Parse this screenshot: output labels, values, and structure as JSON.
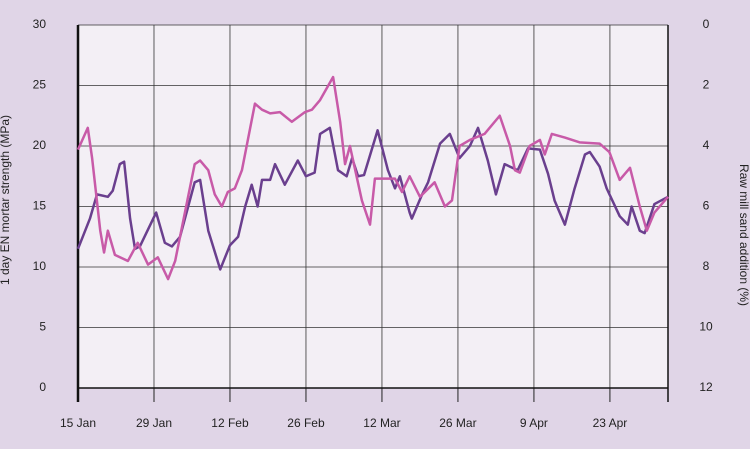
{
  "chart_data": {
    "type": "line",
    "y_label": "1 day EN mortar strength (MPa)",
    "y2_label": "Raw mill sand addition (%)",
    "xlim": [
      0,
      108.7
    ],
    "xticks": [
      {
        "value": 0,
        "label": "15 Jan"
      },
      {
        "value": 14,
        "label": "29 Jan"
      },
      {
        "value": 28,
        "label": "12 Feb"
      },
      {
        "value": 42,
        "label": "26 Feb"
      },
      {
        "value": 56,
        "label": "12 Mar"
      },
      {
        "value": 70,
        "label": "26 Mar"
      },
      {
        "value": 84,
        "label": "9 Apr"
      },
      {
        "value": 98,
        "label": "23 Apr"
      }
    ],
    "ylim": [
      0,
      30
    ],
    "yticks": [
      0,
      5,
      10,
      15,
      20,
      25,
      30
    ],
    "y2lim": [
      0,
      12
    ],
    "y2ticks": [
      0,
      2,
      4,
      6,
      8,
      10,
      12
    ],
    "y2_inverted": true,
    "grid": true,
    "series": [
      {
        "color": "#6a3f8e",
        "x": [
          0,
          2.2,
          3.5,
          5.5,
          6.4,
          7.7,
          8.5,
          9.6,
          10.5,
          11.4,
          14.4,
          16.0,
          17.3,
          18.8,
          20.3,
          21.5,
          22.5,
          24.0,
          26.2,
          28.0,
          29.5,
          30.8,
          32.0,
          33.1,
          33.9,
          35.4,
          36.3,
          38.1,
          40.5,
          42.0,
          43.6,
          44.6,
          46.4,
          47.9,
          49.5,
          50.5,
          51.6,
          52.7,
          55.2,
          57.1,
          58.4,
          59.3,
          61.1,
          61.5,
          63.4,
          64.5,
          66.7,
          68.5,
          70.3,
          72.2,
          73.7,
          75.5,
          77.0,
          78.6,
          81.0,
          82.9,
          85.1,
          86.6,
          87.8,
          89.7,
          91.5,
          93.4,
          94.3,
          96.1,
          97.4,
          99.8,
          101.3,
          102.0,
          103.5,
          104.4,
          106.2,
          108.7
        ],
        "values": [
          11.5,
          14,
          16,
          15.8,
          16.3,
          18.5,
          18.7,
          14,
          11.5,
          11.7,
          14.5,
          12,
          11.7,
          12.5,
          15,
          17,
          17.2,
          13,
          9.8,
          11.8,
          12.5,
          15,
          16.8,
          15,
          17.2,
          17.2,
          18.5,
          16.8,
          18.8,
          17.5,
          17.8,
          21,
          21.5,
          18,
          17.5,
          19,
          17.5,
          17.6,
          21.3,
          18,
          16.5,
          17.5,
          14.5,
          14,
          16,
          17,
          20.2,
          21,
          19,
          20,
          21.5,
          18.8,
          16,
          18.5,
          18,
          19.8,
          19.7,
          17.7,
          15.5,
          13.5,
          16.5,
          19.3,
          19.5,
          18.3,
          16.5,
          14.2,
          13.5,
          15,
          13,
          12.8,
          15.2,
          15.8
        ]
      },
      {
        "color": "#c85aa8",
        "axis": "y2",
        "x": [
          0,
          1.8,
          2.6,
          4.1,
          4.8,
          5.5,
          6.8,
          9.2,
          11.0,
          12.9,
          14.7,
          16.6,
          17.9,
          19.7,
          21.5,
          22.5,
          24.0,
          25.2,
          26.5,
          27.6,
          28.9,
          30.2,
          32.6,
          33.9,
          35.4,
          37.2,
          39.4,
          41.8,
          43.1,
          44.6,
          47.0,
          48.3,
          49.2,
          50.1,
          52.3,
          53.8,
          54.7,
          58.4,
          59.7,
          61.1,
          63.0,
          65.7,
          67.6,
          68.9,
          70.3,
          72.2,
          74.9,
          77.7,
          79.6,
          80.5,
          81.4,
          83.2,
          85.1,
          86.0,
          87.3,
          89.7,
          92.4,
          96.1,
          97.9,
          99.8,
          101.7,
          103.5,
          104.8,
          106.2,
          108.7
        ],
        "values": [
          4.12,
          3.4,
          4.4,
          6.8,
          7.52,
          6.8,
          7.6,
          7.8,
          7.2,
          7.92,
          7.68,
          8.4,
          7.8,
          6.2,
          4.6,
          4.48,
          4.8,
          5.6,
          6.0,
          5.52,
          5.4,
          4.8,
          2.6,
          2.8,
          2.92,
          2.88,
          3.2,
          2.88,
          2.8,
          2.48,
          1.72,
          3.2,
          4.6,
          4.0,
          5.8,
          6.6,
          5.08,
          5.08,
          5.52,
          5.0,
          5.68,
          5.2,
          6.0,
          5.8,
          4.0,
          3.8,
          3.6,
          3.0,
          4.0,
          4.8,
          4.88,
          4.0,
          3.8,
          4.28,
          3.6,
          3.72,
          3.88,
          3.92,
          4.2,
          5.12,
          4.72,
          6.0,
          6.8,
          6.2,
          5.68
        ]
      }
    ]
  }
}
